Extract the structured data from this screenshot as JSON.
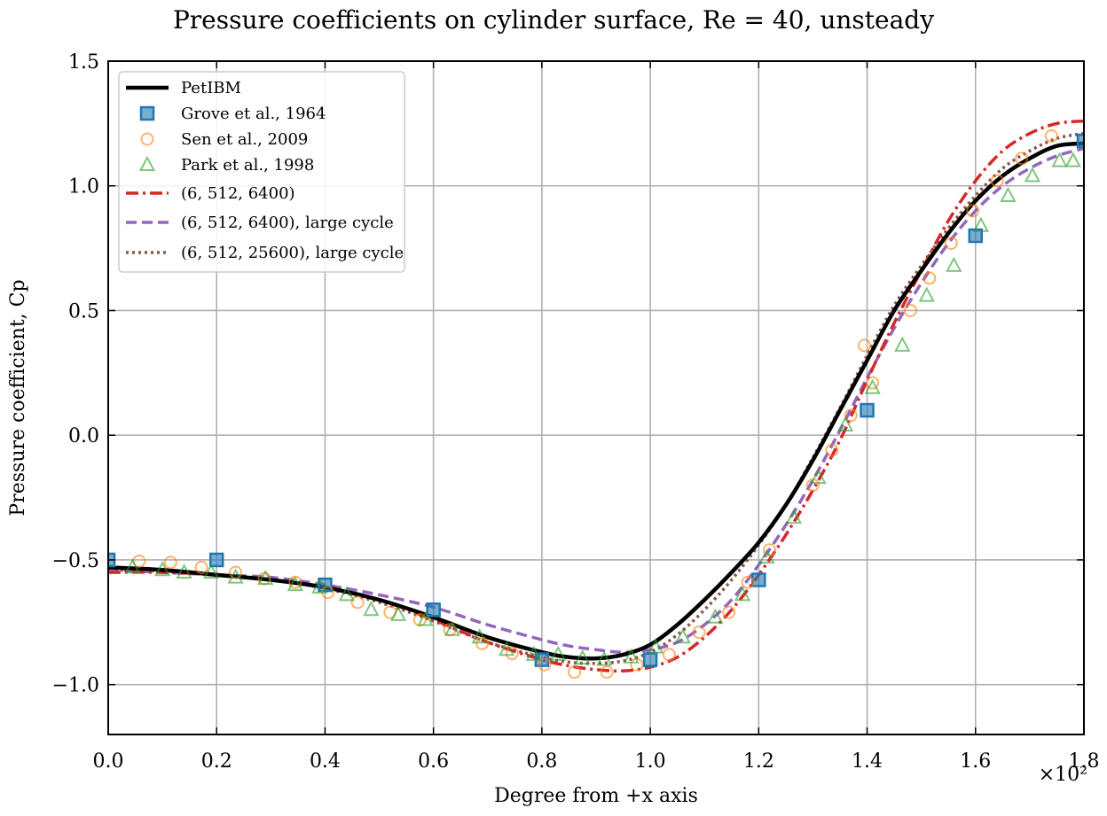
{
  "chart_data": {
    "type": "line",
    "title": "Pressure coefficients on cylinder surface, Re = 40, unsteady",
    "xlabel": "Degree from +x axis",
    "ylabel": "Pressure coefficient, Cp",
    "x_multiplier_label": "×10²",
    "xlim": [
      0.0,
      1.8
    ],
    "ylim": [
      -1.2,
      1.5
    ],
    "x_ticks": [
      0.0,
      0.2,
      0.4,
      0.6,
      0.8,
      1.0,
      1.2,
      1.4,
      1.6,
      1.8
    ],
    "x_tick_labels": [
      "0.0",
      "0.2",
      "0.4",
      "0.6",
      "0.8",
      "1.0",
      "1.2",
      "1.4",
      "1.6",
      "1.8"
    ],
    "y_ticks": [
      -1.0,
      -0.5,
      0.0,
      0.5,
      1.0,
      1.5
    ],
    "y_tick_labels": [
      "−1.0",
      "−0.5",
      "0.0",
      "0.5",
      "1.0",
      "1.5"
    ],
    "grid": true,
    "legend_position": "top-left",
    "series": [
      {
        "name": "PetIBM",
        "kind": "line",
        "color": "#000000",
        "dash": "solid",
        "x": [
          0.0,
          0.1,
          0.2,
          0.3,
          0.4,
          0.5,
          0.6,
          0.7,
          0.8,
          0.85,
          0.9,
          0.95,
          1.0,
          1.05,
          1.1,
          1.15,
          1.2,
          1.25,
          1.3,
          1.35,
          1.4,
          1.45,
          1.5,
          1.55,
          1.6,
          1.65,
          1.7,
          1.75,
          1.8
        ],
        "y": [
          -0.53,
          -0.54,
          -0.56,
          -0.58,
          -0.61,
          -0.66,
          -0.73,
          -0.81,
          -0.87,
          -0.89,
          -0.895,
          -0.88,
          -0.84,
          -0.76,
          -0.66,
          -0.55,
          -0.43,
          -0.28,
          -0.1,
          0.1,
          0.3,
          0.5,
          0.66,
          0.81,
          0.94,
          1.04,
          1.11,
          1.16,
          1.17
        ]
      },
      {
        "name": "Grove et al., 1964",
        "kind": "marker",
        "marker": "square",
        "color": "#1f77b4",
        "x": [
          0.0,
          0.2,
          0.4,
          0.6,
          0.8,
          1.0,
          1.2,
          1.4,
          1.6,
          1.8
        ],
        "y": [
          -0.5,
          -0.5,
          -0.6,
          -0.7,
          -0.9,
          -0.9,
          -0.58,
          0.1,
          0.8,
          1.18
        ]
      },
      {
        "name": "Sen et al., 2009",
        "kind": "marker",
        "marker": "circle",
        "color": "#ff7f0e",
        "x": [
          0.057,
          0.115,
          0.172,
          0.235,
          0.288,
          0.345,
          0.405,
          0.46,
          0.52,
          0.575,
          0.63,
          0.69,
          0.745,
          0.805,
          0.86,
          0.92,
          0.975,
          1.035,
          1.09,
          1.145,
          1.18,
          1.22,
          1.3,
          1.335,
          1.37,
          1.395,
          1.41,
          1.48,
          1.515,
          1.555,
          1.595,
          1.64,
          1.685,
          1.74
        ],
        "y": [
          -0.505,
          -0.51,
          -0.53,
          -0.55,
          -0.575,
          -0.59,
          -0.63,
          -0.67,
          -0.71,
          -0.74,
          -0.78,
          -0.835,
          -0.875,
          -0.92,
          -0.95,
          -0.95,
          -0.92,
          -0.88,
          -0.79,
          -0.71,
          -0.59,
          -0.46,
          -0.2,
          -0.06,
          0.08,
          0.36,
          0.21,
          0.5,
          0.63,
          0.77,
          0.9,
          1.02,
          1.11,
          1.2
        ]
      },
      {
        "name": "Park et al., 1998",
        "kind": "marker",
        "marker": "triangle",
        "color": "#2ca02c",
        "x": [
          0.045,
          0.1,
          0.14,
          0.19,
          0.235,
          0.29,
          0.345,
          0.39,
          0.44,
          0.485,
          0.535,
          0.585,
          0.635,
          0.685,
          0.735,
          0.785,
          0.83,
          0.875,
          0.915,
          0.965,
          1.01,
          1.06,
          1.12,
          1.17,
          1.215,
          1.265,
          1.31,
          1.36,
          1.41,
          1.465,
          1.51,
          1.56,
          1.61,
          1.66,
          1.705,
          1.755,
          1.78
        ],
        "y": [
          -0.53,
          -0.54,
          -0.55,
          -0.55,
          -0.57,
          -0.575,
          -0.6,
          -0.61,
          -0.64,
          -0.7,
          -0.72,
          -0.74,
          -0.78,
          -0.81,
          -0.86,
          -0.88,
          -0.88,
          -0.895,
          -0.9,
          -0.89,
          -0.85,
          -0.81,
          -0.73,
          -0.64,
          -0.49,
          -0.33,
          -0.17,
          0.04,
          0.19,
          0.36,
          0.56,
          0.68,
          0.84,
          0.96,
          1.04,
          1.1,
          1.1
        ]
      },
      {
        "name": "(6, 512, 6400)",
        "kind": "line",
        "color": "#d62728",
        "dash": "dashdot",
        "x": [
          0.0,
          0.1,
          0.2,
          0.3,
          0.4,
          0.5,
          0.6,
          0.7,
          0.8,
          0.85,
          0.9,
          0.95,
          1.0,
          1.05,
          1.1,
          1.15,
          1.2,
          1.25,
          1.3,
          1.35,
          1.4,
          1.45,
          1.5,
          1.55,
          1.6,
          1.65,
          1.7,
          1.75,
          1.8
        ],
        "y": [
          -0.55,
          -0.55,
          -0.56,
          -0.58,
          -0.61,
          -0.66,
          -0.74,
          -0.83,
          -0.9,
          -0.925,
          -0.94,
          -0.945,
          -0.93,
          -0.89,
          -0.81,
          -0.7,
          -0.56,
          -0.4,
          -0.22,
          -0.02,
          0.22,
          0.45,
          0.66,
          0.86,
          1.02,
          1.14,
          1.21,
          1.25,
          1.26
        ]
      },
      {
        "name": "(6, 512, 6400), large cycle",
        "kind": "line",
        "color": "#9467bd",
        "dash": "dashed",
        "x": [
          0.0,
          0.1,
          0.2,
          0.3,
          0.4,
          0.5,
          0.6,
          0.7,
          0.8,
          0.85,
          0.9,
          0.95,
          1.0,
          1.05,
          1.1,
          1.15,
          1.2,
          1.25,
          1.3,
          1.35,
          1.4,
          1.45,
          1.5,
          1.55,
          1.6,
          1.65,
          1.7,
          1.75,
          1.8
        ],
        "y": [
          -0.54,
          -0.55,
          -0.56,
          -0.57,
          -0.6,
          -0.64,
          -0.69,
          -0.76,
          -0.82,
          -0.845,
          -0.86,
          -0.87,
          -0.86,
          -0.83,
          -0.76,
          -0.66,
          -0.52,
          -0.36,
          -0.18,
          0.02,
          0.23,
          0.43,
          0.61,
          0.77,
          0.9,
          1.0,
          1.07,
          1.12,
          1.15
        ]
      },
      {
        "name": "(6, 512, 25600), large cycle",
        "kind": "line",
        "color": "#8c564b",
        "dash": "dotted",
        "x": [
          0.0,
          0.1,
          0.2,
          0.3,
          0.4,
          0.5,
          0.6,
          0.7,
          0.8,
          0.85,
          0.9,
          0.95,
          1.0,
          1.05,
          1.1,
          1.15,
          1.2,
          1.25,
          1.3,
          1.35,
          1.4,
          1.45,
          1.5,
          1.55,
          1.6,
          1.65,
          1.7,
          1.75,
          1.8
        ],
        "y": [
          -0.54,
          -0.545,
          -0.56,
          -0.58,
          -0.615,
          -0.67,
          -0.745,
          -0.83,
          -0.89,
          -0.91,
          -0.915,
          -0.905,
          -0.87,
          -0.8,
          -0.7,
          -0.58,
          -0.44,
          -0.28,
          -0.09,
          0.11,
          0.32,
          0.52,
          0.68,
          0.83,
          0.96,
          1.07,
          1.14,
          1.19,
          1.21
        ]
      }
    ]
  }
}
